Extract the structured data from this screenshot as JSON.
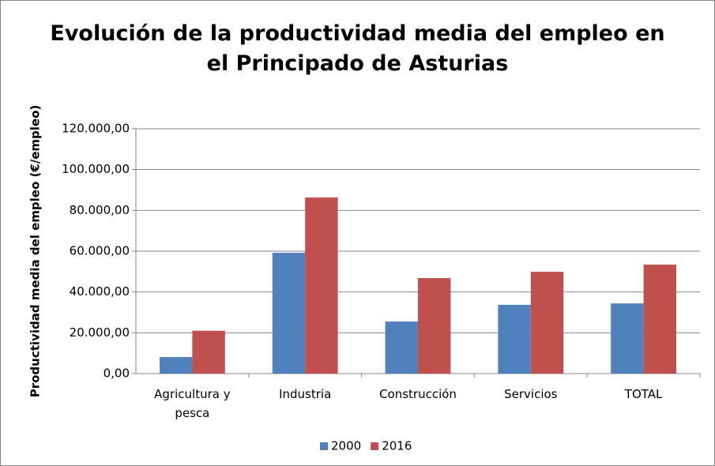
{
  "chart_data": {
    "type": "bar",
    "title": "Evolución de la productividad media del empleo en el Principado de Asturias",
    "y_label": "Productividad media del empleo (€/empleo)",
    "categories": [
      "Agricultura y pesca",
      "Industria",
      "Construcción",
      "Servicios",
      "TOTAL"
    ],
    "series": [
      {
        "name": "2000",
        "color": "#4f81bd",
        "values": [
          8100,
          59200,
          25500,
          33700,
          34400
        ]
      },
      {
        "name": "2016",
        "color": "#c0504d",
        "values": [
          21000,
          86300,
          46800,
          49900,
          53400
        ]
      }
    ],
    "ylim": [
      0,
      120000
    ],
    "yticks": [
      {
        "value": 0,
        "label": "0,00"
      },
      {
        "value": 20000,
        "label": "20.000,00"
      },
      {
        "value": 40000,
        "label": "40.000,00"
      },
      {
        "value": 60000,
        "label": "60.000,00"
      },
      {
        "value": 80000,
        "label": "80.000,00"
      },
      {
        "value": 100000,
        "label": "100.000,00"
      },
      {
        "value": 120000,
        "label": "120.000,00"
      }
    ],
    "grid": true,
    "legend": "bottom"
  }
}
